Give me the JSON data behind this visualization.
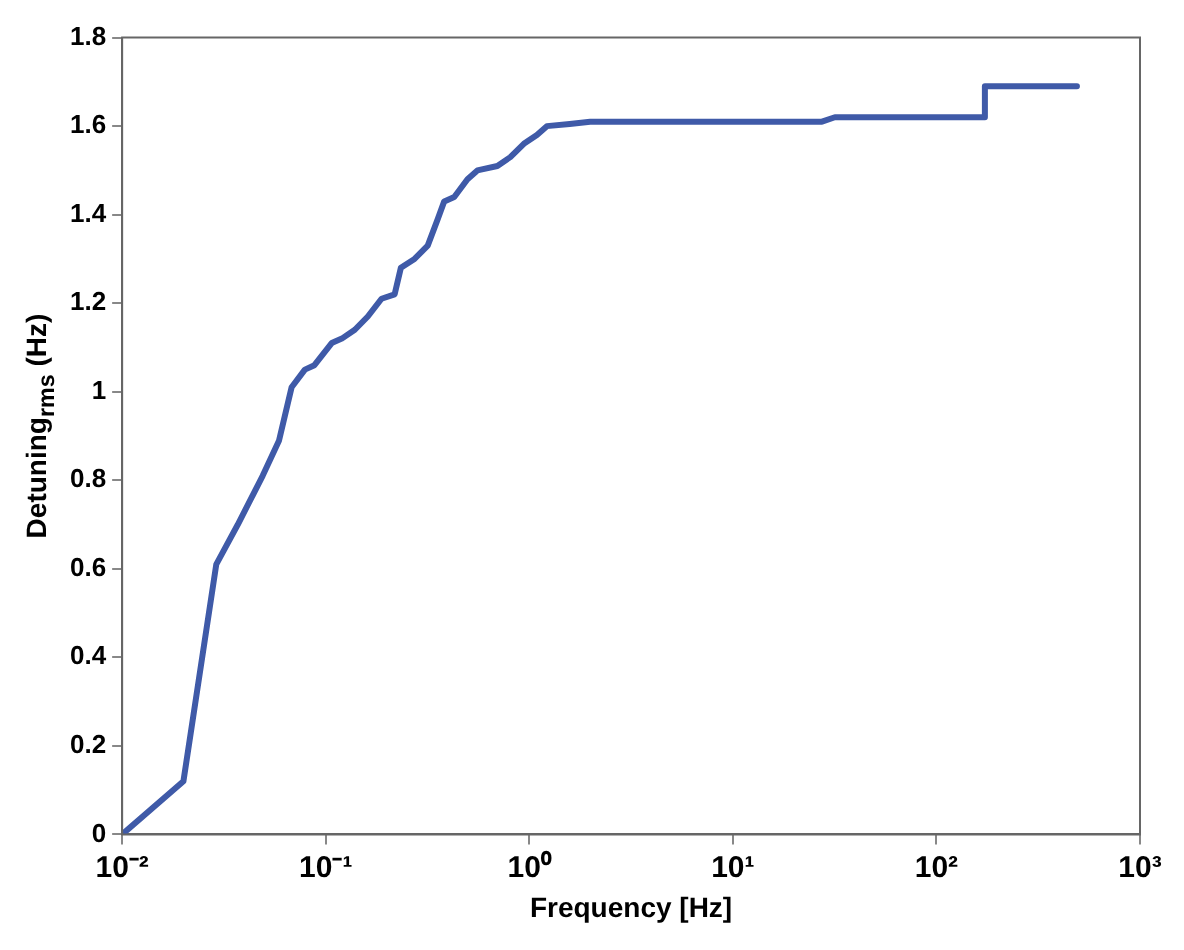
{
  "chart_data": {
    "type": "line",
    "xlabel": "Frequency [Hz]",
    "ylabel": "Detuning$_{rms}$ (Hz)",
    "log": "x",
    "grid": false,
    "legend": false,
    "marker": "none",
    "line_style": "solid",
    "xlim": [
      0.01,
      1000
    ],
    "xticks": [
      {
        "value": 0.01,
        "label": "10⁻²"
      },
      {
        "value": 0.1,
        "label": "10⁻¹"
      },
      {
        "value": 1,
        "label": "10⁰"
      },
      {
        "value": 10,
        "label": "10¹"
      },
      {
        "value": 100,
        "label": "10²"
      },
      {
        "value": 1000,
        "label": "10³"
      }
    ],
    "ylim": [
      0,
      1.8
    ],
    "yticks": [
      0,
      0.2,
      0.4,
      0.6,
      0.8,
      1,
      1.2,
      1.4,
      1.6,
      1.8
    ],
    "series": [
      {
        "color": "#3f5aa8",
        "x": [
          0.01,
          0.02,
          0.029,
          0.037,
          0.049,
          0.059,
          0.068,
          0.079,
          0.088,
          0.107,
          0.12,
          0.139,
          0.161,
          0.188,
          0.218,
          0.234,
          0.273,
          0.317,
          0.355,
          0.382,
          0.428,
          0.497,
          0.556,
          0.697,
          0.807,
          0.94,
          1.09,
          1.22,
          1.58,
          1.99,
          27.4,
          31.7,
          172,
          173,
          490
        ],
        "values": [
          0,
          0.12,
          0.61,
          0.7,
          0.81,
          0.89,
          1.01,
          1.05,
          1.06,
          1.11,
          1.12,
          1.14,
          1.17,
          1.21,
          1.22,
          1.28,
          1.3,
          1.33,
          1.39,
          1.43,
          1.44,
          1.48,
          1.5,
          1.51,
          1.53,
          1.56,
          1.58,
          1.6,
          1.605,
          1.61,
          1.61,
          1.62,
          1.62,
          1.69,
          1.69
        ]
      }
    ]
  }
}
